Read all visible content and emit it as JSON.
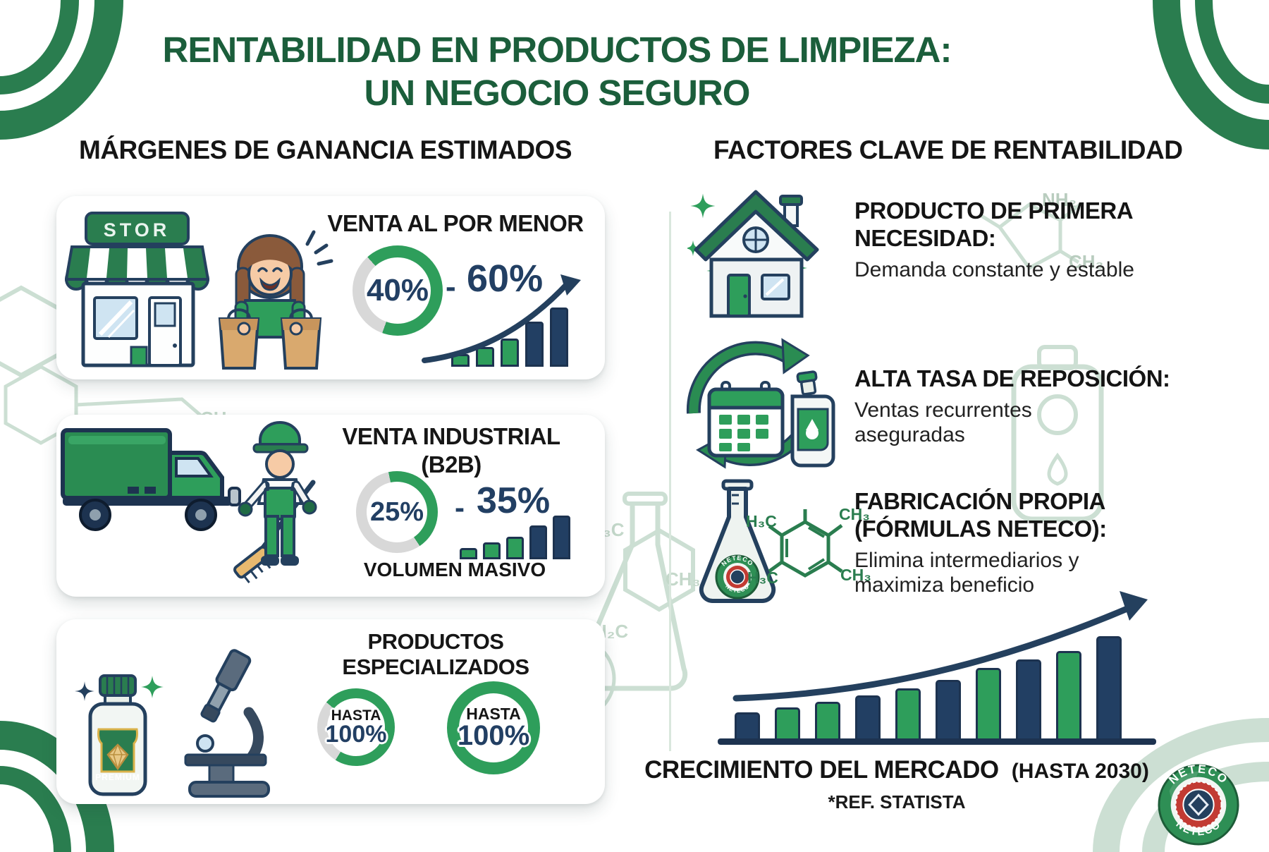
{
  "colors": {
    "title_green": "#1b5e3b",
    "accent_green": "#2e9e5b",
    "dark_green": "#2a7d4f",
    "navy": "#223f63",
    "navy_dark": "#1d3350",
    "track_gray": "#d8d8d8",
    "faint_green": "#ccdfd3",
    "tan": "#d9a96e",
    "red": "#c23b33"
  },
  "title": {
    "line1": "RENTABILIDAD EN PRODUCTOS DE LIMPIEZA:",
    "line2": "UN NEGOCIO SEGURO"
  },
  "left": {
    "header": "MÁRGENES DE GANANCIA ESTIMADOS",
    "cards": [
      {
        "title": "VENTA AL POR MENOR",
        "store_sign": "STOR",
        "range_low": "40%",
        "range_sep": "-",
        "range_high": "60%",
        "donut_percent": 67,
        "mini_bars": {
          "values": [
            18,
            28,
            40,
            64,
            84
          ],
          "colors": [
            "green",
            "green",
            "green",
            "navy",
            "navy"
          ]
        }
      },
      {
        "title_line1": "VENTA INDUSTRIAL",
        "title_line2": "(B2B)",
        "range_low": "25%",
        "range_sep": "-",
        "range_high": "35%",
        "note": "VOLUMEN MASIVO",
        "donut_percent": 44,
        "mini_bars": {
          "values": [
            16,
            24,
            32,
            48,
            62
          ],
          "colors": [
            "green",
            "green",
            "green",
            "navy",
            "navy"
          ]
        }
      },
      {
        "title": "PRODUCTOS ESPECIALIZADOS",
        "bottle_label": "PREMIUM",
        "gauges": [
          {
            "label": "HASTA",
            "value": "100%",
            "percent": 73
          },
          {
            "label": "HASTA",
            "value": "100%",
            "percent": 100
          }
        ]
      }
    ]
  },
  "right": {
    "header": "FACTORES CLAVE DE RENTABILIDAD",
    "factors": [
      {
        "title": "PRODUCTO DE PRIMERA NECESIDAD:",
        "desc": "Demanda constante y estable"
      },
      {
        "title": "ALTA TASA DE REPOSICIÓN:",
        "desc": "Ventas recurrentes aseguradas"
      },
      {
        "title": "FABRICACIÓN PROPIA (FÓRMULAS NETECO):",
        "desc": "Elimina intermediarios y maximiza beneficio"
      }
    ]
  },
  "chart_data": {
    "type": "bar",
    "title": "CRECIMIENTO DEL MERCADO",
    "title_suffix": "(HASTA 2030)",
    "ref": "*REF. STATISTA",
    "values": [
      27,
      32,
      37,
      43,
      50,
      58,
      69,
      77,
      85,
      99
    ],
    "bar_colors": [
      "navy",
      "green",
      "green",
      "navy",
      "green",
      "navy",
      "green",
      "navy",
      "green",
      "navy"
    ],
    "xlabel": "",
    "ylabel": "",
    "trend": "upward-arrow",
    "legend": "none",
    "grid": false
  },
  "chem": {
    "h3c": "H₃C",
    "ch3": "CH₃",
    "h2c": "H₂C",
    "nh2": "NH₂",
    "ch": "CH"
  },
  "badge": {
    "name": "NETECO"
  }
}
